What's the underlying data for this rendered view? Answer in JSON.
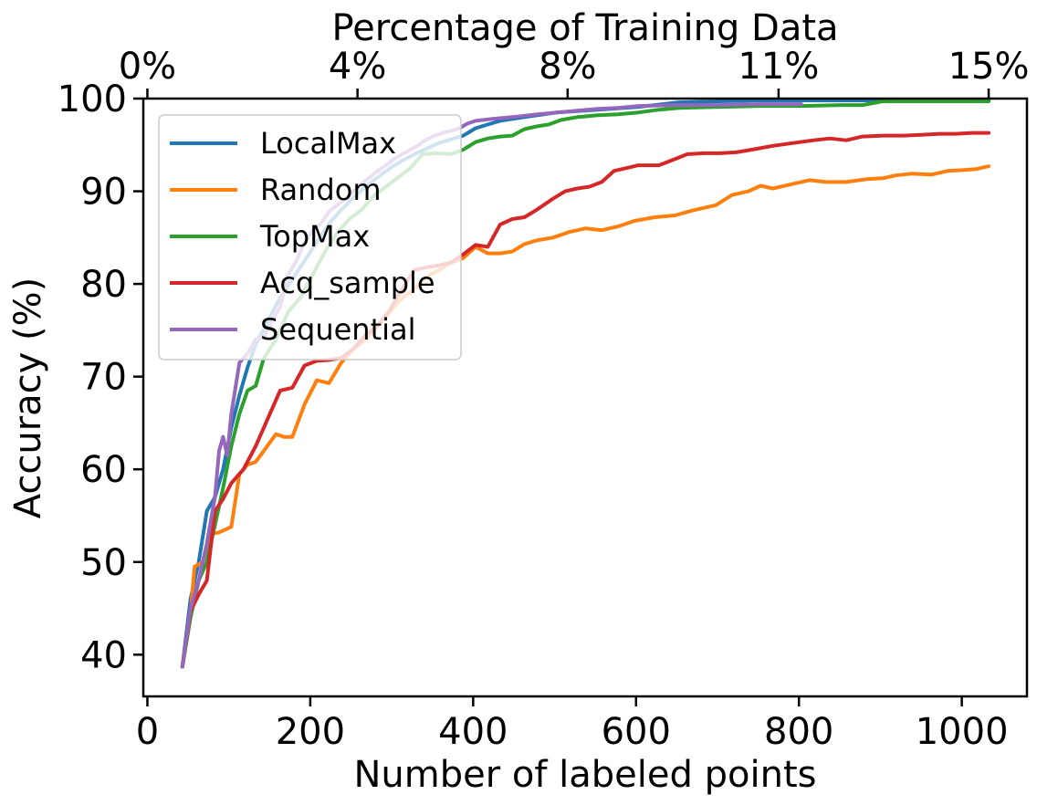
{
  "chart_data": {
    "type": "line",
    "xlabel": "Number of labeled points",
    "ylabel": "Accuracy (%)",
    "top_xlabel": "Percentage of Training Data",
    "xlim": [
      -5,
      1080
    ],
    "ylim": [
      35.5,
      100
    ],
    "x_ticks": [
      0,
      200,
      400,
      600,
      800,
      1000
    ],
    "x_tick_labels": [
      "0",
      "200",
      "400",
      "600",
      "800",
      "1000"
    ],
    "y_ticks": [
      40,
      50,
      60,
      70,
      80,
      90,
      100
    ],
    "y_tick_labels": [
      "40",
      "50",
      "60",
      "70",
      "80",
      "90",
      "100"
    ],
    "top_ticks": [
      0,
      258,
      516,
      775,
      1033
    ],
    "top_tick_labels": [
      "0%",
      "4%",
      "8%",
      "11%",
      "15%"
    ],
    "legend_position": "upper-left",
    "grid": false,
    "series": [
      {
        "name": "LocalMax",
        "color": "#1f77b4",
        "points": [
          [
            43,
            38.7
          ],
          [
            53,
            46
          ],
          [
            63,
            50
          ],
          [
            73,
            55.5
          ],
          [
            83,
            57
          ],
          [
            93,
            60
          ],
          [
            103,
            64.5
          ],
          [
            113,
            68
          ],
          [
            123,
            71
          ],
          [
            133,
            73.5
          ],
          [
            148,
            76
          ],
          [
            163,
            78.5
          ],
          [
            178,
            80.5
          ],
          [
            193,
            82.5
          ],
          [
            208,
            84.5
          ],
          [
            223,
            86.5
          ],
          [
            238,
            88
          ],
          [
            253,
            89.3
          ],
          [
            268,
            90.5
          ],
          [
            283,
            91.5
          ],
          [
            298,
            92.5
          ],
          [
            313,
            93.3
          ],
          [
            328,
            94
          ],
          [
            343,
            94.6
          ],
          [
            358,
            95.2
          ],
          [
            373,
            95.6
          ],
          [
            388,
            96
          ],
          [
            403,
            96.8
          ],
          [
            418,
            97.2
          ],
          [
            433,
            97.6
          ],
          [
            463,
            98
          ],
          [
            503,
            98.5
          ],
          [
            553,
            98.8
          ],
          [
            603,
            99.1
          ],
          [
            653,
            99.6
          ],
          [
            703,
            99.7
          ],
          [
            753,
            99.8
          ],
          [
            803,
            99.8
          ],
          [
            853,
            99.8
          ],
          [
            903,
            99.8
          ],
          [
            953,
            99.8
          ],
          [
            1003,
            99.8
          ],
          [
            1033,
            99.8
          ]
        ]
      },
      {
        "name": "Random",
        "color": "#ff7f0e",
        "points": [
          [
            43,
            38.7
          ],
          [
            53,
            44.5
          ],
          [
            58,
            49.5
          ],
          [
            68,
            50
          ],
          [
            78,
            53
          ],
          [
            88,
            53.2
          ],
          [
            103,
            53.8
          ],
          [
            113,
            59.5
          ],
          [
            123,
            60.5
          ],
          [
            133,
            60.8
          ],
          [
            143,
            62
          ],
          [
            158,
            63.8
          ],
          [
            168,
            63.5
          ],
          [
            178,
            63.5
          ],
          [
            193,
            67
          ],
          [
            208,
            69.6
          ],
          [
            223,
            69.3
          ],
          [
            238,
            71.5
          ],
          [
            253,
            73
          ],
          [
            268,
            74
          ],
          [
            283,
            75.5
          ],
          [
            298,
            77
          ],
          [
            313,
            78.5
          ],
          [
            328,
            79.5
          ],
          [
            343,
            80.8
          ],
          [
            358,
            81.5
          ],
          [
            373,
            82.3
          ],
          [
            388,
            82.8
          ],
          [
            403,
            84
          ],
          [
            418,
            83.3
          ],
          [
            433,
            83.3
          ],
          [
            448,
            83.5
          ],
          [
            463,
            84.3
          ],
          [
            478,
            84.7
          ],
          [
            498,
            85
          ],
          [
            518,
            85.6
          ],
          [
            538,
            86
          ],
          [
            558,
            85.8
          ],
          [
            578,
            86.2
          ],
          [
            598,
            86.8
          ],
          [
            623,
            87.2
          ],
          [
            648,
            87.4
          ],
          [
            668,
            87.9
          ],
          [
            698,
            88.5
          ],
          [
            718,
            89.6
          ],
          [
            738,
            90
          ],
          [
            753,
            90.6
          ],
          [
            768,
            90.3
          ],
          [
            793,
            90.8
          ],
          [
            813,
            91.2
          ],
          [
            833,
            91
          ],
          [
            858,
            91
          ],
          [
            883,
            91.3
          ],
          [
            903,
            91.4
          ],
          [
            918,
            91.7
          ],
          [
            938,
            91.9
          ],
          [
            963,
            91.8
          ],
          [
            983,
            92.2
          ],
          [
            1003,
            92.3
          ],
          [
            1018,
            92.4
          ],
          [
            1033,
            92.7
          ]
        ]
      },
      {
        "name": "TopMax",
        "color": "#2ca02c",
        "points": [
          [
            43,
            38.7
          ],
          [
            53,
            44
          ],
          [
            63,
            48
          ],
          [
            73,
            50
          ],
          [
            83,
            54
          ],
          [
            93,
            58
          ],
          [
            103,
            62.5
          ],
          [
            113,
            66
          ],
          [
            123,
            68.5
          ],
          [
            133,
            69
          ],
          [
            143,
            72
          ],
          [
            158,
            74
          ],
          [
            173,
            77
          ],
          [
            188,
            78.5
          ],
          [
            203,
            81
          ],
          [
            218,
            83.5
          ],
          [
            233,
            85.5
          ],
          [
            248,
            87
          ],
          [
            263,
            88
          ],
          [
            278,
            89.5
          ],
          [
            293,
            90.5
          ],
          [
            308,
            91.5
          ],
          [
            323,
            92.5
          ],
          [
            338,
            94
          ],
          [
            353,
            94.1
          ],
          [
            373,
            94
          ],
          [
            388,
            94.5
          ],
          [
            403,
            95.3
          ],
          [
            418,
            95.7
          ],
          [
            433,
            95.9
          ],
          [
            448,
            96
          ],
          [
            463,
            96.7
          ],
          [
            478,
            97
          ],
          [
            493,
            97.2
          ],
          [
            508,
            97.7
          ],
          [
            528,
            98
          ],
          [
            553,
            98.2
          ],
          [
            578,
            98.3
          ],
          [
            603,
            98.5
          ],
          [
            628,
            98.8
          ],
          [
            653,
            99
          ],
          [
            703,
            99.1
          ],
          [
            753,
            99.2
          ],
          [
            803,
            99.2
          ],
          [
            853,
            99.3
          ],
          [
            878,
            99.3
          ],
          [
            903,
            99.7
          ],
          [
            953,
            99.7
          ],
          [
            1003,
            99.7
          ],
          [
            1033,
            99.7
          ]
        ]
      },
      {
        "name": "Acq_sample",
        "color": "#d62728",
        "points": [
          [
            43,
            38.7
          ],
          [
            53,
            44.7
          ],
          [
            63,
            46.5
          ],
          [
            73,
            48
          ],
          [
            83,
            55.5
          ],
          [
            93,
            56.8
          ],
          [
            103,
            58.5
          ],
          [
            118,
            60
          ],
          [
            133,
            62.5
          ],
          [
            148,
            65.5
          ],
          [
            163,
            68.5
          ],
          [
            178,
            68.8
          ],
          [
            193,
            71.2
          ],
          [
            208,
            71.7
          ],
          [
            223,
            71.8
          ],
          [
            238,
            72
          ],
          [
            253,
            73
          ],
          [
            268,
            74.5
          ],
          [
            283,
            75.5
          ],
          [
            298,
            77.2
          ],
          [
            313,
            79.5
          ],
          [
            328,
            81.5
          ],
          [
            343,
            81.8
          ],
          [
            358,
            82
          ],
          [
            373,
            82.3
          ],
          [
            388,
            83.2
          ],
          [
            403,
            84.2
          ],
          [
            418,
            84
          ],
          [
            433,
            86.4
          ],
          [
            448,
            87
          ],
          [
            463,
            87.2
          ],
          [
            478,
            88
          ],
          [
            498,
            89.2
          ],
          [
            513,
            90
          ],
          [
            528,
            90.3
          ],
          [
            543,
            90.5
          ],
          [
            558,
            91
          ],
          [
            573,
            92.2
          ],
          [
            588,
            92.5
          ],
          [
            603,
            92.8
          ],
          [
            628,
            92.8
          ],
          [
            643,
            93.3
          ],
          [
            663,
            94
          ],
          [
            683,
            94.1
          ],
          [
            703,
            94.1
          ],
          [
            723,
            94.2
          ],
          [
            743,
            94.5
          ],
          [
            768,
            94.9
          ],
          [
            793,
            95.2
          ],
          [
            818,
            95.5
          ],
          [
            838,
            95.7
          ],
          [
            858,
            95.5
          ],
          [
            878,
            95.9
          ],
          [
            903,
            96
          ],
          [
            928,
            96
          ],
          [
            953,
            96.1
          ],
          [
            973,
            96.2
          ],
          [
            993,
            96.2
          ],
          [
            1013,
            96.3
          ],
          [
            1033,
            96.3
          ]
        ]
      },
      {
        "name": "Sequential",
        "color": "#9467bd",
        "points": [
          [
            43,
            38.7
          ],
          [
            53,
            45
          ],
          [
            63,
            48
          ],
          [
            73,
            52
          ],
          [
            83,
            57
          ],
          [
            88,
            62
          ],
          [
            93,
            63.5
          ],
          [
            98,
            61.5
          ],
          [
            103,
            66
          ],
          [
            113,
            71.5
          ],
          [
            123,
            72.5
          ],
          [
            133,
            74
          ],
          [
            143,
            74.3
          ],
          [
            153,
            76
          ],
          [
            163,
            77.5
          ],
          [
            173,
            81
          ],
          [
            183,
            82.5
          ],
          [
            193,
            84.5
          ],
          [
            203,
            85.8
          ],
          [
            213,
            86.5
          ],
          [
            223,
            87.8
          ],
          [
            233,
            88.5
          ],
          [
            243,
            89.2
          ],
          [
            253,
            90
          ],
          [
            263,
            90.8
          ],
          [
            273,
            91.5
          ],
          [
            283,
            92.2
          ],
          [
            293,
            92.8
          ],
          [
            303,
            93.5
          ],
          [
            313,
            94
          ],
          [
            323,
            94.5
          ],
          [
            333,
            95
          ],
          [
            343,
            95.6
          ],
          [
            353,
            96
          ],
          [
            363,
            96.3
          ],
          [
            373,
            96.5
          ],
          [
            383,
            96.8
          ],
          [
            393,
            97.3
          ],
          [
            403,
            97.6
          ],
          [
            423,
            97.8
          ],
          [
            448,
            98
          ],
          [
            478,
            98.3
          ],
          [
            503,
            98.5
          ],
          [
            528,
            98.7
          ],
          [
            553,
            98.9
          ],
          [
            578,
            99
          ],
          [
            603,
            99.2
          ],
          [
            653,
            99.3
          ],
          [
            703,
            99.3
          ],
          [
            753,
            99.4
          ],
          [
            803,
            99.4
          ]
        ]
      }
    ]
  }
}
